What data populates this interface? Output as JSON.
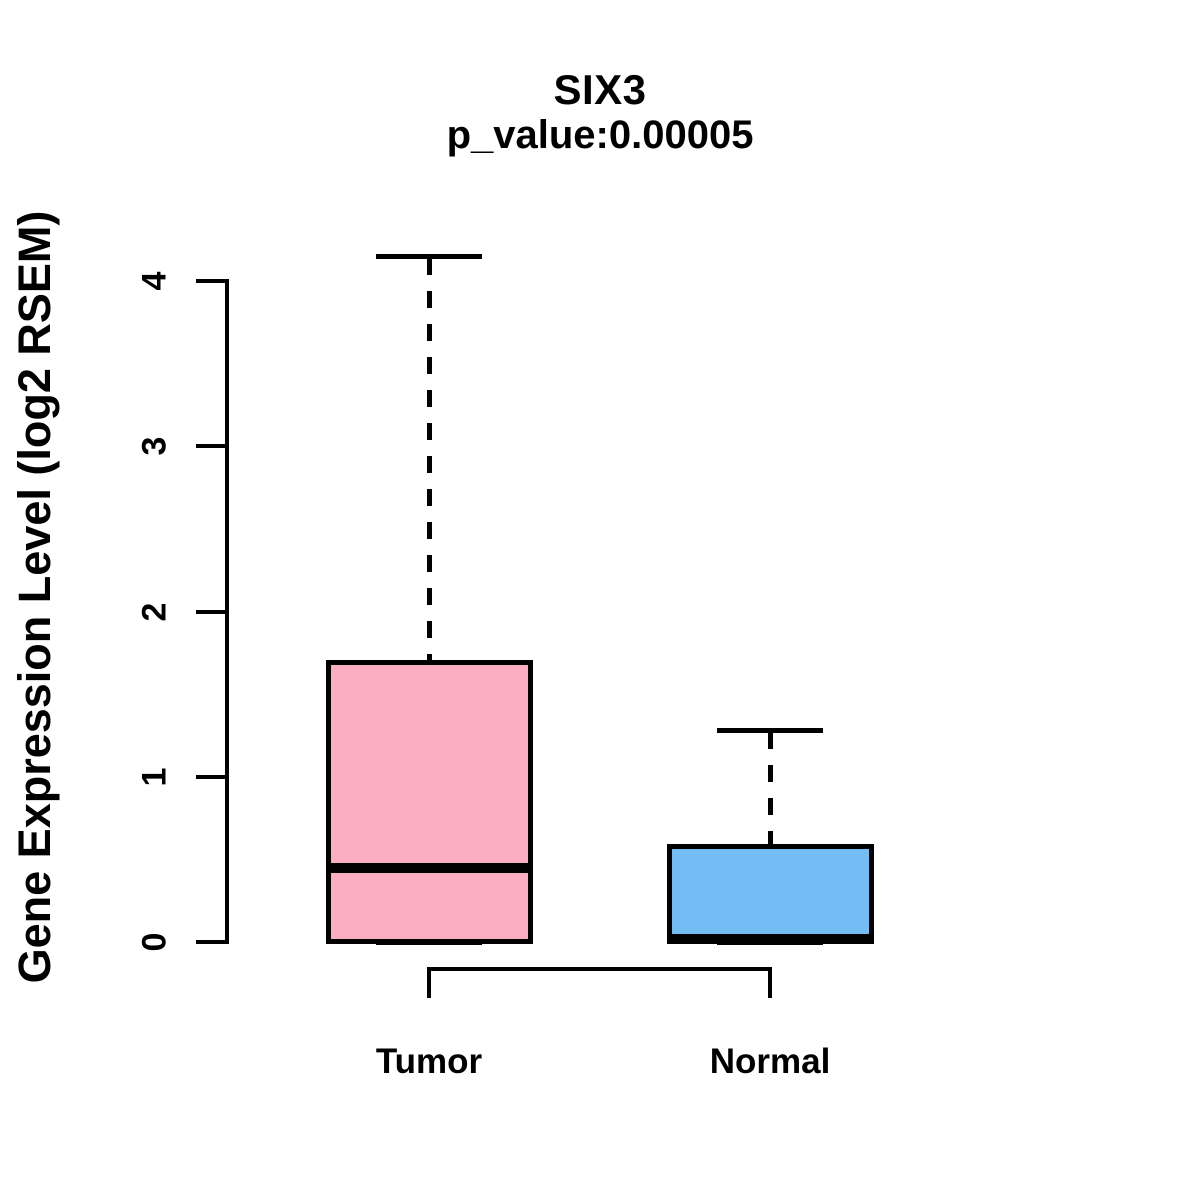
{
  "chart_data": {
    "type": "boxplot",
    "title": "SIX3",
    "subtitle": "p_value:0.00005",
    "ylabel": "Gene Expression Level (log2 RSEM)",
    "xlabel": "",
    "ylim": [
      0,
      4.2
    ],
    "yticks": [
      "0",
      "1",
      "2",
      "3",
      "4"
    ],
    "grid": false,
    "legend": "none",
    "background_color": "#FFFFFF",
    "box_border_color": "#000000",
    "categories": [
      "Tumor",
      "Normal"
    ],
    "series": [
      {
        "name": "Tumor",
        "lower_whisker": 0,
        "q1": 0,
        "median": 0.45,
        "q3": 1.69,
        "upper_whisker": 4.15,
        "fill_color": "#FBAEC0"
      },
      {
        "name": "Normal",
        "lower_whisker": 0,
        "q1": 0,
        "median": 0.02,
        "q3": 0.58,
        "upper_whisker": 1.28,
        "fill_color": "#74BDF4"
      }
    ]
  }
}
